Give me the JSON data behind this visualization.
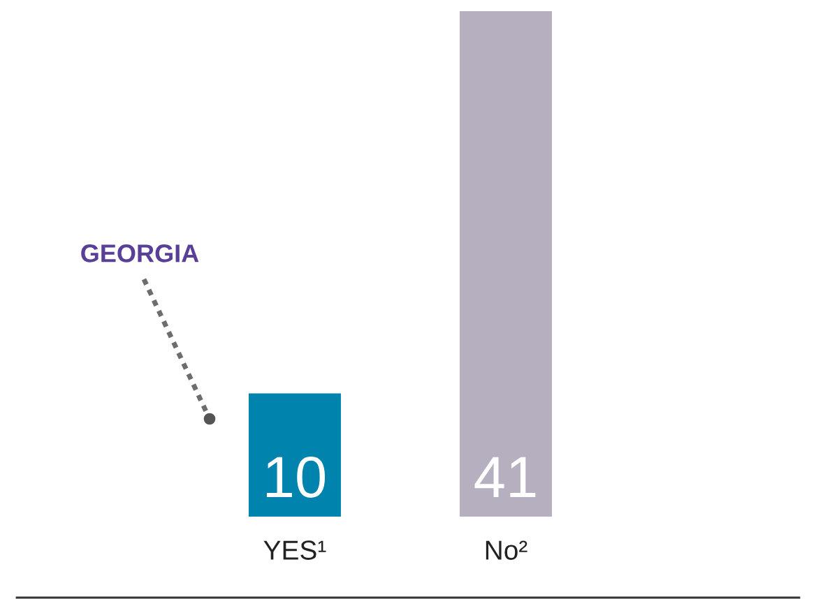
{
  "chart_data": {
    "type": "bar",
    "categories": [
      "YES¹",
      "No²"
    ],
    "values": [
      10,
      41
    ],
    "colors": [
      "#0083ad",
      "#b6afbf"
    ],
    "data_labels": true,
    "grid": false,
    "tick_labels": "x",
    "annotations": [
      "GEORGIA"
    ]
  }
}
